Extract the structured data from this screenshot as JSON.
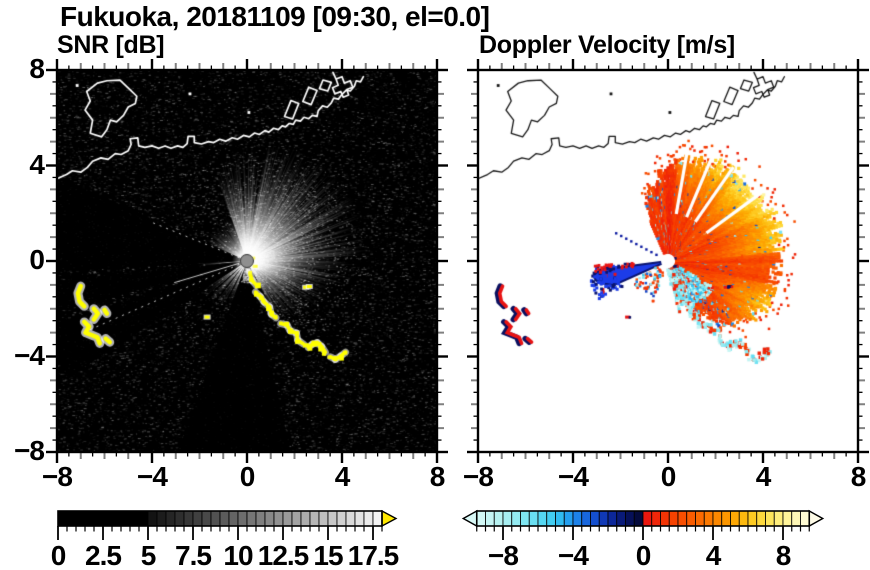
{
  "title": "Fukuoka, 20181109 [09:30, el=0.0]",
  "panels": {
    "snr": {
      "title": "SNR [dB]"
    },
    "velocity": {
      "title": "Doppler Velocity [m/s]"
    }
  },
  "axes": {
    "x_range": [
      -8,
      8
    ],
    "y_range": [
      -8,
      8
    ],
    "x_tick_labels": [
      "−8",
      "−4",
      "0",
      "4",
      "8"
    ],
    "x_tick_values": [
      -8,
      -4,
      0,
      4,
      8
    ],
    "y_tick_labels": [
      "8",
      "4",
      "0",
      "−4",
      "−8"
    ],
    "y_tick_values": [
      8,
      4,
      0,
      -4,
      -8
    ],
    "major_tick_step": 4,
    "mid_tick_step": 1,
    "minor_tick_step": 0.5
  },
  "colorbars": {
    "snr": {
      "tick_labels": [
        "0",
        "2.5",
        "5",
        "7.5",
        "10",
        "12.5",
        "15",
        "17.5"
      ],
      "tick_values": [
        0,
        2.5,
        5,
        7.5,
        10,
        12.5,
        15,
        17.5
      ],
      "range": [
        0,
        18
      ],
      "style": "black below 5, gray ramp to white at 18",
      "over_arrow_color": "#ffe800"
    },
    "velocity": {
      "tick_labels": [
        "−8",
        "−4",
        "0",
        "4",
        "8"
      ],
      "tick_values": [
        -8,
        -4,
        0,
        4,
        8
      ],
      "range": [
        -9.5,
        9.5
      ],
      "style": "diverging: pale cyan to dark navy (negative), red to pale yellow (positive)",
      "under_arrow_color": "#d9f9f7",
      "over_arrow_color": "#fffce8"
    }
  },
  "chart_data": [
    {
      "type": "heatmap",
      "panel": "left",
      "title": "SNR [dB]",
      "x_range": [
        -8,
        8
      ],
      "y_range": [
        -8,
        8
      ],
      "colorbar_ticks": [
        0,
        2.5,
        5,
        7.5,
        10,
        12.5,
        15,
        17.5
      ],
      "colorbar_range": [
        0,
        18
      ],
      "content": "Radar PPI, radar at (0,0): background noise speckle 0-4 dB on black; radial beam glow 5-12 dB strongest toward NE-E; black blocked sectors toward W-SW (azimuths ~156-284 deg); yellow saturated ground-clutter arc (>18 dB) from (0.1,-0.5) to (4.2,-3.8); yellow clutter cluster near (-6.8,-2.2); white coastline across upper third"
    },
    {
      "type": "heatmap",
      "panel": "right",
      "title": "Doppler Velocity [m/s]",
      "x_range": [
        -8,
        8
      ],
      "y_range": [
        -8,
        8
      ],
      "colorbar_ticks": [
        -8,
        -4,
        0,
        4,
        8
      ],
      "colorbar_range": [
        -9.5,
        9.5
      ],
      "content": "Doppler velocity fan on white: outbound +1 to +8 m/s (red/orange/yellow) in sector azimuth -78 to 114 deg, radius up to ~4.6; yellow maxima +5 to +8 toward NE; inbound blue wedge -4 to -8 m/s toward azimuth ~195 deg, length ~2.9; dark-navy clutter band along arc (0.1,-0.5)-(4.2,-3.8) mixed with red; red/navy clutter cluster near (-6.8,-2.2); black coastline overlay"
    }
  ],
  "features": {
    "radar_center": [
      0,
      0
    ],
    "clutter_chain": [
      [
        0.12,
        -0.5
      ],
      [
        0.22,
        -0.82
      ],
      [
        0.4,
        -1.02
      ],
      [
        0.36,
        -1.3
      ],
      [
        0.55,
        -1.48
      ],
      [
        0.72,
        -1.72
      ],
      [
        0.95,
        -1.92
      ],
      [
        1.02,
        -2.22
      ],
      [
        1.22,
        -2.38
      ],
      [
        1.42,
        -2.62
      ],
      [
        1.68,
        -2.68
      ],
      [
        1.82,
        -2.92
      ],
      [
        2.08,
        -3.02
      ],
      [
        2.14,
        -3.32
      ],
      [
        2.38,
        -3.48
      ],
      [
        2.58,
        -3.62
      ],
      [
        2.76,
        -3.48
      ],
      [
        2.96,
        -3.42
      ],
      [
        3.14,
        -3.58
      ],
      [
        3.3,
        -3.82
      ],
      [
        3.52,
        -4.02
      ],
      [
        3.72,
        -4.12
      ],
      [
        3.95,
        -3.98
      ],
      [
        4.15,
        -3.82
      ]
    ],
    "chain_gaps": [
      2,
      8,
      14,
      19
    ],
    "west_clutter": [
      [
        [
          -7.0,
          -1.05
        ],
        [
          -7.12,
          -1.35
        ],
        [
          -7.05,
          -1.7
        ],
        [
          -6.85,
          -1.9
        ]
      ],
      [
        [
          -6.45,
          -2.0
        ],
        [
          -6.28,
          -2.2
        ],
        [
          -6.45,
          -2.45
        ]
      ],
      [
        [
          -6.85,
          -2.55
        ],
        [
          -6.65,
          -2.75
        ],
        [
          -6.8,
          -3.0
        ],
        [
          -6.55,
          -3.1
        ],
        [
          -6.3,
          -3.2
        ],
        [
          -6.2,
          -3.45
        ]
      ],
      [
        [
          -5.95,
          -3.25
        ],
        [
          -5.78,
          -3.4
        ]
      ],
      [
        [
          -6.0,
          -2.05
        ],
        [
          -5.9,
          -2.2
        ]
      ]
    ],
    "small_clutter_spots": [
      [
        2.45,
        -1.1
      ],
      [
        2.6,
        -1.07
      ],
      [
        -1.7,
        -2.35
      ],
      [
        0.32,
        -0.22
      ],
      [
        0.22,
        0.12
      ]
    ],
    "snr": {
      "dark_wedges_deg": [
        [
          156,
          183
        ],
        [
          186,
          196
        ],
        [
          198,
          213
        ],
        [
          221.5,
          223.5
        ],
        [
          231,
          233
        ],
        [
          242,
          244
        ],
        [
          250,
          284
        ]
      ],
      "thin_rays_deg": [
        158,
        196.5,
        203.5
      ],
      "glow_peak_deg": 45
    },
    "velocity": {
      "fan_sector_deg": [
        -78,
        114
      ],
      "fan_rmax": [
        [
          -78,
          1.2
        ],
        [
          -70,
          1.6
        ],
        [
          -62,
          2.2
        ],
        [
          -50,
          3.4
        ],
        [
          -40,
          4.0
        ],
        [
          -28,
          4.35
        ],
        [
          -15,
          4.55
        ],
        [
          0,
          4.6
        ],
        [
          15,
          4.75
        ],
        [
          35,
          4.7
        ],
        [
          55,
          4.6
        ],
        [
          70,
          4.35
        ],
        [
          85,
          4.15
        ],
        [
          95,
          3.7
        ],
        [
          104,
          3.0
        ],
        [
          114,
          2.0
        ]
      ],
      "fan_base_v": [
        [
          -78,
          1.2
        ],
        [
          -60,
          2.0
        ],
        [
          -40,
          2.6
        ],
        [
          -20,
          2.7
        ],
        [
          0,
          2.8
        ],
        [
          20,
          3.1
        ],
        [
          45,
          3.0
        ],
        [
          65,
          2.6
        ],
        [
          85,
          2.2
        ],
        [
          100,
          1.8
        ],
        [
          114,
          1.6
        ]
      ],
      "inbound_wedge_deg": [
        186,
        205
      ],
      "dotted_ray_deg": 152,
      "white_gap_rays_deg": [
        36,
        55,
        67,
        80
      ],
      "below_center_blue_deg": [
        282,
        330
      ]
    }
  },
  "map": {
    "coastline": [
      [
        -8,
        3.45
      ],
      [
        -7.6,
        3.62
      ],
      [
        -7.35,
        3.78
      ],
      [
        -7.0,
        3.72
      ],
      [
        -6.72,
        3.92
      ],
      [
        -6.5,
        4.18
      ],
      [
        -6.15,
        4.32
      ],
      [
        -5.85,
        4.26
      ],
      [
        -5.55,
        4.5
      ],
      [
        -5.3,
        4.46
      ],
      [
        -5.0,
        4.62
      ],
      [
        -4.88,
        4.88
      ],
      [
        -4.92,
        5.12
      ],
      [
        -4.6,
        5.16
      ],
      [
        -4.56,
        4.82
      ],
      [
        -4.3,
        4.76
      ],
      [
        -4.0,
        4.82
      ],
      [
        -3.72,
        4.72
      ],
      [
        -3.45,
        4.82
      ],
      [
        -3.2,
        4.72
      ],
      [
        -2.92,
        4.82
      ],
      [
        -2.7,
        4.76
      ],
      [
        -2.52,
        4.92
      ],
      [
        -2.48,
        5.22
      ],
      [
        -2.22,
        5.22
      ],
      [
        -2.22,
        4.96
      ],
      [
        -1.92,
        4.9
      ],
      [
        -1.62,
        5.0
      ],
      [
        -1.4,
        4.96
      ],
      [
        -1.15,
        5.1
      ],
      [
        -0.9,
        5.02
      ],
      [
        -0.62,
        5.16
      ],
      [
        -0.4,
        5.1
      ],
      [
        -0.15,
        5.26
      ],
      [
        0.1,
        5.2
      ],
      [
        0.32,
        5.36
      ],
      [
        0.52,
        5.3
      ],
      [
        0.75,
        5.46
      ],
      [
        0.92,
        5.4
      ],
      [
        1.12,
        5.56
      ],
      [
        1.32,
        5.5
      ],
      [
        1.48,
        5.66
      ],
      [
        1.62,
        5.62
      ],
      [
        1.78,
        5.76
      ],
      [
        1.95,
        5.72
      ],
      [
        2.05,
        5.9
      ],
      [
        2.25,
        5.86
      ],
      [
        2.4,
        6.02
      ],
      [
        2.6,
        5.96
      ],
      [
        2.75,
        6.1
      ],
      [
        2.95,
        6.06
      ],
      [
        3.0,
        6.3
      ],
      [
        3.18,
        6.5
      ],
      [
        3.38,
        6.44
      ],
      [
        3.55,
        6.62
      ],
      [
        3.65,
        6.82
      ],
      [
        3.85,
        6.78
      ],
      [
        4.0,
        6.98
      ],
      [
        4.18,
        7.16
      ],
      [
        4.35,
        7.12
      ],
      [
        4.52,
        7.32
      ],
      [
        4.6,
        7.55
      ],
      [
        4.78,
        7.5
      ],
      [
        4.9,
        7.72
      ]
    ],
    "island": [
      [
        -6.75,
        7.1
      ],
      [
        -6.3,
        7.45
      ],
      [
        -5.9,
        7.55
      ],
      [
        -5.35,
        7.58
      ],
      [
        -4.95,
        7.2
      ],
      [
        -4.64,
        6.9
      ],
      [
        -4.7,
        6.6
      ],
      [
        -5.0,
        6.45
      ],
      [
        -5.2,
        6.1
      ],
      [
        -5.49,
        5.83
      ],
      [
        -5.75,
        5.9
      ],
      [
        -5.9,
        5.5
      ],
      [
        -6.12,
        5.2
      ],
      [
        -6.6,
        5.35
      ],
      [
        -6.5,
        5.9
      ],
      [
        -6.82,
        6.32
      ],
      [
        -6.6,
        6.7
      ],
      [
        -6.75,
        7.1
      ]
    ],
    "harbor_shapes": [
      [
        [
          1.58,
          6.05
        ],
        [
          1.85,
          6.72
        ],
        [
          2.18,
          6.6
        ],
        [
          1.92,
          5.95
        ],
        [
          1.58,
          6.05
        ]
      ],
      [
        [
          2.35,
          6.68
        ],
        [
          2.6,
          7.28
        ],
        [
          2.95,
          7.14
        ],
        [
          2.7,
          6.55
        ],
        [
          2.35,
          6.68
        ]
      ],
      [
        [
          3.05,
          7.22
        ],
        [
          3.2,
          7.58
        ],
        [
          3.55,
          7.48
        ],
        [
          3.4,
          7.12
        ],
        [
          3.05,
          7.22
        ]
      ],
      [
        [
          3.62,
          7.9
        ],
        [
          3.75,
          7.62
        ],
        [
          4.0,
          7.72
        ],
        [
          4.1,
          7.45
        ],
        [
          4.35,
          7.55
        ],
        [
          4.45,
          7.28
        ],
        [
          4.2,
          7.18
        ],
        [
          4.28,
          6.95
        ],
        [
          4.05,
          6.86
        ],
        [
          3.95,
          7.1
        ],
        [
          3.7,
          7.0
        ],
        [
          3.6,
          7.26
        ],
        [
          3.84,
          7.36
        ],
        [
          3.75,
          7.62
        ]
      ]
    ],
    "islet_dots": [
      [
        0.08,
        6.22
      ],
      [
        -2.4,
        7.0
      ],
      [
        -7.15,
        7.35
      ]
    ]
  }
}
